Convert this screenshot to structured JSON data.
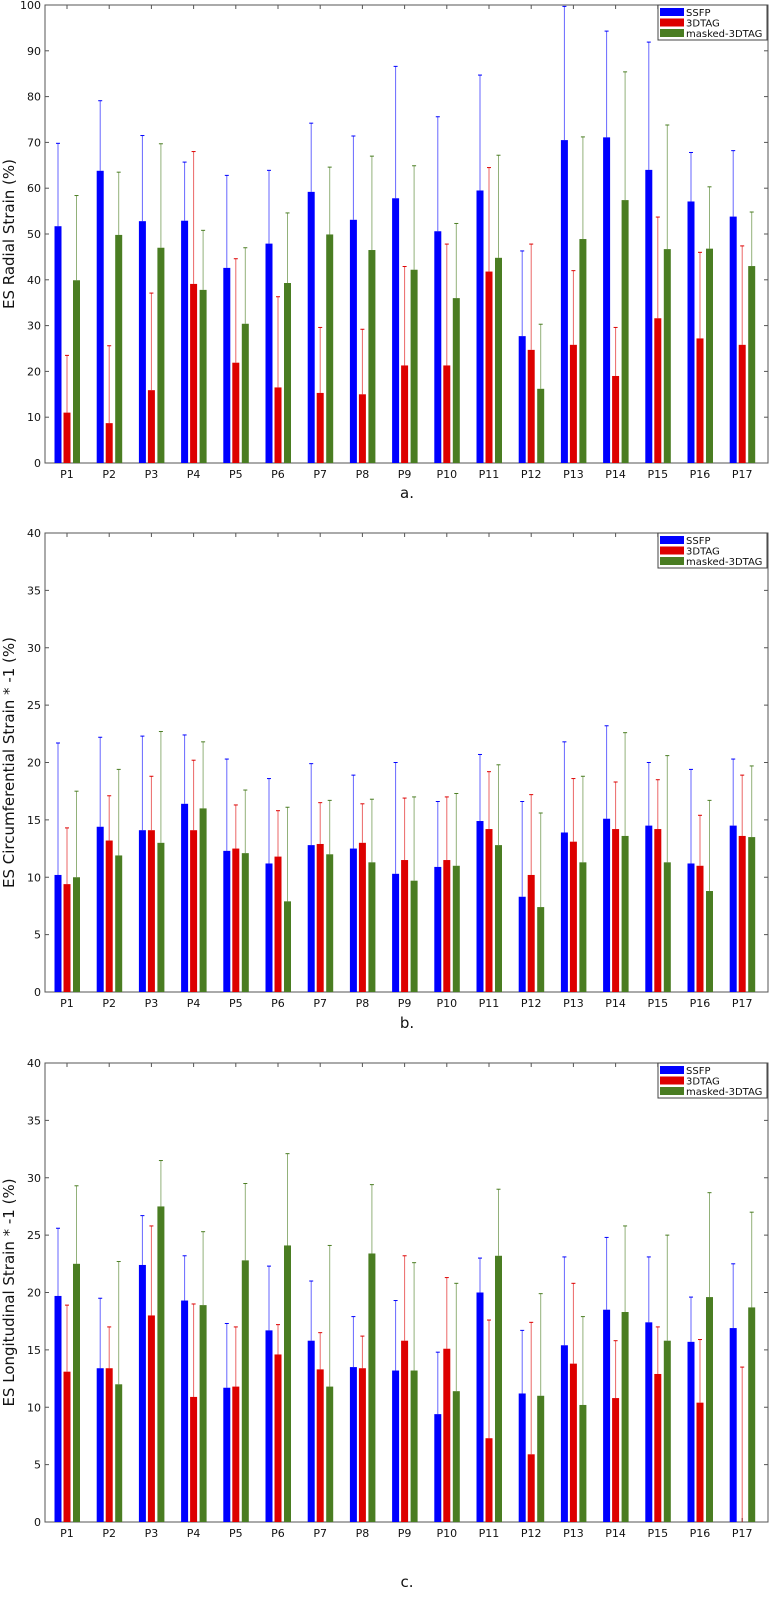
{
  "legend": [
    "SSFP",
    "3DTAG",
    "masked-3DTAG"
  ],
  "colors": {
    "SSFP": "#0000ff",
    "3DTAG": "#dd0000",
    "masked-3DTAG": "#4a7d22"
  },
  "chart_data": [
    {
      "type": "bar",
      "caption": "a.",
      "ylabel": "ES Radial Strain (%)",
      "xlabel": "",
      "ylim": [
        0,
        100
      ],
      "yticks": [
        0,
        10,
        20,
        30,
        40,
        50,
        60,
        70,
        80,
        90,
        100
      ],
      "legend_position": "top-right",
      "categories": [
        "P1",
        "P2",
        "P3",
        "P4",
        "P5",
        "P6",
        "P7",
        "P8",
        "P9",
        "P10",
        "P11",
        "P12",
        "P13",
        "P14",
        "P15",
        "P16",
        "P17"
      ],
      "series": [
        {
          "name": "SSFP",
          "values": [
            51.7,
            63.8,
            52.8,
            52.9,
            42.6,
            47.9,
            59.2,
            53.1,
            57.8,
            50.6,
            59.5,
            27.7,
            70.5,
            71.1,
            64.0,
            57.1,
            53.8
          ],
          "error_upper": [
            69.8,
            79.1,
            71.5,
            65.7,
            62.8,
            63.9,
            74.2,
            71.4,
            86.6,
            75.6,
            84.7,
            46.3,
            99.7,
            94.3,
            91.9,
            67.8,
            68.2
          ]
        },
        {
          "name": "3DTAG",
          "values": [
            11.0,
            8.7,
            15.9,
            39.1,
            21.9,
            16.5,
            15.3,
            15.0,
            21.3,
            21.3,
            41.8,
            24.7,
            25.8,
            19.0,
            31.6,
            27.2,
            25.8
          ],
          "error_upper": [
            23.5,
            25.6,
            37.1,
            68.0,
            44.6,
            36.3,
            29.6,
            29.2,
            42.9,
            47.8,
            64.5,
            47.8,
            42.0,
            29.6,
            53.7,
            46.0,
            47.4
          ]
        },
        {
          "name": "masked-3DTAG",
          "values": [
            39.9,
            49.8,
            47.0,
            37.8,
            30.4,
            39.3,
            49.9,
            46.5,
            42.2,
            36.0,
            44.8,
            16.2,
            48.9,
            57.4,
            46.7,
            46.8,
            43.0
          ],
          "error_upper": [
            58.4,
            63.5,
            69.7,
            50.8,
            47.0,
            54.6,
            64.6,
            67.0,
            64.9,
            52.3,
            67.2,
            30.3,
            71.2,
            85.4,
            73.8,
            60.3,
            54.8
          ]
        }
      ]
    },
    {
      "type": "bar",
      "caption": "b.",
      "ylabel": "ES Circumferential Strain * -1 (%)",
      "xlabel": "",
      "ylim": [
        0,
        40
      ],
      "yticks": [
        0,
        5,
        10,
        15,
        20,
        25,
        30,
        35,
        40
      ],
      "legend_position": "top-right",
      "categories": [
        "P1",
        "P2",
        "P3",
        "P4",
        "P5",
        "P6",
        "P7",
        "P8",
        "P9",
        "P10",
        "P11",
        "P12",
        "P13",
        "P14",
        "P15",
        "P16",
        "P17"
      ],
      "series": [
        {
          "name": "SSFP",
          "values": [
            10.2,
            14.4,
            14.1,
            16.4,
            12.3,
            11.2,
            12.8,
            12.5,
            10.3,
            10.9,
            14.9,
            8.3,
            13.9,
            15.1,
            14.5,
            11.2,
            14.5
          ],
          "error_upper": [
            21.7,
            22.2,
            22.3,
            22.4,
            20.3,
            18.6,
            19.9,
            18.9,
            20.0,
            16.6,
            20.7,
            16.6,
            21.8,
            23.2,
            20.0,
            19.4,
            20.3
          ]
        },
        {
          "name": "3DTAG",
          "values": [
            9.4,
            13.2,
            14.1,
            14.1,
            12.5,
            11.8,
            12.9,
            13.0,
            11.5,
            11.5,
            14.2,
            10.2,
            13.1,
            14.2,
            14.2,
            11.0,
            13.6
          ],
          "error_upper": [
            14.3,
            17.1,
            18.8,
            20.2,
            16.3,
            15.8,
            16.5,
            16.4,
            16.9,
            17.0,
            19.2,
            17.2,
            18.6,
            18.3,
            18.5,
            15.4,
            18.9
          ]
        },
        {
          "name": "masked-3DTAG",
          "values": [
            10.0,
            11.9,
            13.0,
            16.0,
            12.1,
            7.9,
            12.0,
            11.3,
            9.7,
            11.0,
            12.8,
            7.4,
            11.3,
            13.6,
            11.3,
            8.8,
            13.5
          ],
          "error_upper": [
            17.5,
            19.4,
            22.7,
            21.8,
            17.6,
            16.1,
            16.7,
            16.8,
            17.0,
            17.3,
            19.8,
            15.6,
            18.8,
            22.6,
            20.6,
            16.7,
            19.7
          ]
        }
      ]
    },
    {
      "type": "bar",
      "caption": "c.",
      "ylabel": "ES Longitudinal Strain * -1 (%)",
      "xlabel": "",
      "ylim": [
        0,
        40
      ],
      "yticks": [
        0,
        5,
        10,
        15,
        20,
        25,
        30,
        35,
        40
      ],
      "legend_position": "top-right",
      "categories": [
        "P1",
        "P2",
        "P3",
        "P4",
        "P5",
        "P6",
        "P7",
        "P8",
        "P9",
        "P10",
        "P11",
        "P12",
        "P13",
        "P14",
        "P15",
        "P16",
        "P17"
      ],
      "series": [
        {
          "name": "SSFP",
          "values": [
            19.7,
            13.4,
            22.4,
            19.3,
            11.7,
            16.7,
            15.8,
            13.5,
            13.2,
            9.4,
            20.0,
            11.2,
            15.4,
            18.5,
            17.4,
            15.7,
            16.9
          ],
          "error_upper": [
            25.6,
            19.5,
            26.7,
            23.2,
            17.3,
            22.3,
            21.0,
            17.9,
            19.3,
            14.8,
            23.0,
            16.7,
            23.1,
            24.8,
            23.1,
            19.6,
            22.5
          ]
        },
        {
          "name": "3DTAG",
          "values": [
            13.1,
            13.4,
            18.0,
            10.9,
            11.8,
            14.6,
            13.3,
            13.4,
            15.8,
            15.1,
            7.3,
            5.9,
            13.8,
            10.8,
            12.9,
            10.4,
            0
          ],
          "error_upper": [
            18.9,
            17.0,
            25.8,
            19.0,
            17.0,
            17.2,
            16.5,
            16.2,
            23.2,
            21.3,
            17.6,
            17.4,
            20.8,
            15.8,
            17.0,
            15.9,
            13.5
          ]
        },
        {
          "name": "masked-3DTAG",
          "values": [
            22.5,
            12.0,
            27.5,
            18.9,
            22.8,
            24.1,
            11.8,
            23.4,
            13.2,
            11.4,
            23.2,
            11.0,
            10.2,
            18.3,
            15.8,
            19.6,
            18.7
          ],
          "error_upper": [
            29.3,
            22.7,
            31.5,
            25.3,
            29.5,
            32.1,
            24.1,
            29.4,
            22.6,
            20.8,
            29.0,
            19.9,
            17.9,
            25.8,
            25.0,
            28.7,
            27.0
          ]
        }
      ]
    }
  ]
}
